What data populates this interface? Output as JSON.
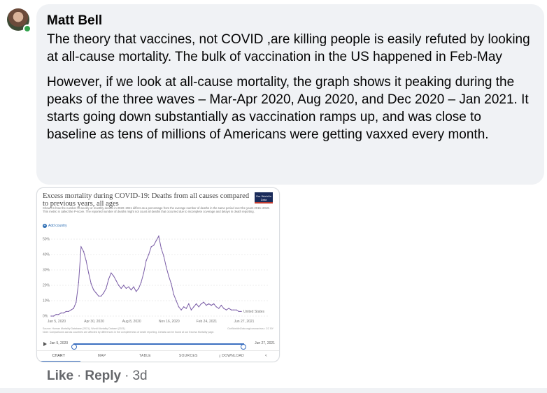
{
  "comment": {
    "author": "Matt Bell",
    "paragraphs": [
      "The theory that vaccines, not COVID ,are killing people is easily refuted by looking at all-cause mortality. The bulk of vaccination in the US happened in Feb-May",
      "However, if we look at all-cause mortality, the graph shows it peaking during the peaks of the three waves – Mar-Apr 2020, Aug 2020, and Dec 2020 – Jan 2021. It starts going down substantially as vaccination ramps up, and was close to baseline as tens of millions of Americans were getting vaxxed every month."
    ],
    "actions": {
      "like": "Like",
      "reply": "Reply",
      "separator": "·",
      "time": "3d"
    }
  },
  "attachment": {
    "title": "Excess mortality during COVID-19: Deaths from all causes compared to previous years, all ages",
    "subtitle": "Shown is how the number of weekly or monthly deaths in 2020–2021 differs as a percentage from the average number of deaths in the same period over the years 2015–2019. This metric is called the P-score. The reported number of deaths might not count all deaths that occurred due to incomplete coverage and delays in death reporting.",
    "logo": "Our World in Data",
    "add_country": "Add country",
    "source_left": "Source: Human Mortality Database (2021), World Mortality Dataset (2021)",
    "source_note": "Note: Comparisons across countries are affected by differences in the completeness of death reporting. Details can be found at our Excess Mortality page.",
    "source_right": "OurWorldInData.org/coronavirus • CC BY",
    "timeline_start": "Jan 5, 2020",
    "timeline_end": "Jun 27, 2021",
    "tabs": [
      "CHART",
      "MAP",
      "TABLE",
      "SOURCES",
      "DOWNLOAD"
    ],
    "share_icon": "share-icon"
  },
  "chart_data": {
    "type": "line",
    "title": "Excess mortality during COVID-19: Deaths from all causes compared to previous years, all ages",
    "ylim": [
      0,
      50
    ],
    "yticks": [
      "0%",
      "10%",
      "20%",
      "30%",
      "40%",
      "50%"
    ],
    "xtick_labels": [
      "Jan 5, 2020",
      "Apr 30, 2020",
      "Aug 8, 2020",
      "Nov 16, 2020",
      "Feb 24, 2021",
      "Jun 27, 2021"
    ],
    "grid": true,
    "series": [
      {
        "name": "United States",
        "color": "#7b5ea7",
        "x": [
          0,
          1,
          2,
          3,
          4,
          5,
          6,
          7,
          8,
          9,
          10,
          11,
          12,
          13,
          14,
          15,
          16,
          17,
          18,
          19,
          20,
          21,
          22,
          23,
          24,
          25,
          26,
          27,
          28,
          29,
          30,
          31,
          32,
          33,
          34,
          35,
          36,
          37,
          38,
          39,
          40,
          41,
          42,
          43,
          44,
          45,
          46,
          47,
          48,
          49,
          50,
          51,
          52,
          53,
          54,
          55,
          56,
          57,
          58,
          59,
          60,
          61,
          62,
          63,
          64,
          65,
          66,
          67,
          68,
          69,
          70,
          71,
          72,
          73,
          74,
          75,
          76
        ],
        "values": [
          0,
          0,
          1,
          1,
          2,
          2,
          3,
          3,
          4,
          5,
          9,
          22,
          45,
          42,
          36,
          28,
          21,
          17,
          15,
          13,
          13,
          15,
          18,
          24,
          28,
          26,
          23,
          20,
          18,
          20,
          18,
          19,
          17,
          19,
          16,
          18,
          22,
          28,
          36,
          40,
          45,
          46,
          49,
          52,
          44,
          39,
          32,
          26,
          21,
          14,
          10,
          6,
          4,
          6,
          5,
          8,
          4,
          6,
          8,
          6,
          8,
          9,
          7,
          8,
          7,
          8,
          6,
          5,
          7,
          5,
          4,
          5,
          4,
          4,
          4,
          3,
          3
        ]
      }
    ]
  }
}
